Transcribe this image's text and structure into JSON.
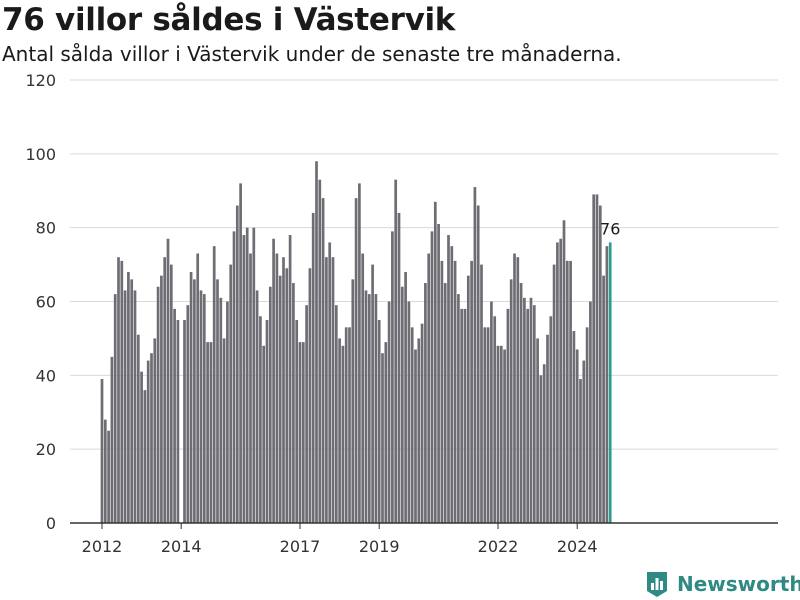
{
  "title": "76 villor såldes i Västervik",
  "subtitle": "Antal sålda villor i Västervik under de senaste tre månaderna.",
  "brand": {
    "name": "Newsworthy"
  },
  "colors": {
    "bar": "#6e6d73",
    "highlight": "#2a9d8f",
    "grid": "#d9d9d9",
    "axis": "#333333"
  },
  "chart_data": {
    "type": "bar",
    "title": "76 villor såldes i Västervik",
    "subtitle": "Antal sålda villor i Västervik under de senaste tre månaderna.",
    "ylim": [
      0,
      120
    ],
    "yticks": [
      0,
      20,
      40,
      60,
      80,
      100,
      120
    ],
    "xticks": [
      {
        "label": "2012",
        "date": "2012-01"
      },
      {
        "label": "2014",
        "date": "2014-01"
      },
      {
        "label": "2017",
        "date": "2017-01"
      },
      {
        "label": "2019",
        "date": "2019-01"
      },
      {
        "label": "2022",
        "date": "2022-01"
      },
      {
        "label": "2024",
        "date": "2024-01"
      }
    ],
    "grid": true,
    "highlight_label": "76",
    "x": [
      "2012-01",
      "2012-02",
      "2012-03",
      "2012-04",
      "2012-05",
      "2012-06",
      "2012-07",
      "2012-08",
      "2012-09",
      "2012-10",
      "2012-11",
      "2012-12",
      "2013-01",
      "2013-02",
      "2013-03",
      "2013-04",
      "2013-05",
      "2013-06",
      "2013-07",
      "2013-08",
      "2013-09",
      "2013-10",
      "2013-11",
      "2013-12",
      "2014-01",
      "2014-02",
      "2014-03",
      "2014-04",
      "2014-05",
      "2014-06",
      "2014-07",
      "2014-08",
      "2014-09",
      "2014-10",
      "2014-11",
      "2014-12",
      "2015-01",
      "2015-02",
      "2015-03",
      "2015-04",
      "2015-05",
      "2015-06",
      "2015-07",
      "2015-08",
      "2015-09",
      "2015-10",
      "2015-11",
      "2015-12",
      "2016-01",
      "2016-02",
      "2016-03",
      "2016-04",
      "2016-05",
      "2016-06",
      "2016-07",
      "2016-08",
      "2016-09",
      "2016-10",
      "2016-11",
      "2016-12",
      "2017-01",
      "2017-02",
      "2017-03",
      "2017-04",
      "2017-05",
      "2017-06",
      "2017-07",
      "2017-08",
      "2017-09",
      "2017-10",
      "2017-11",
      "2017-12",
      "2018-01",
      "2018-02",
      "2018-03",
      "2018-04",
      "2018-05",
      "2018-06",
      "2018-07",
      "2018-08",
      "2018-09",
      "2018-10",
      "2018-11",
      "2018-12",
      "2019-01",
      "2019-02",
      "2019-03",
      "2019-04",
      "2019-05",
      "2019-06",
      "2019-07",
      "2019-08",
      "2019-09",
      "2019-10",
      "2019-11",
      "2019-12",
      "2020-01",
      "2020-02",
      "2020-03",
      "2020-04",
      "2020-05",
      "2020-06",
      "2020-07",
      "2020-08",
      "2020-09",
      "2020-10",
      "2020-11",
      "2020-12",
      "2021-01",
      "2021-02",
      "2021-03",
      "2021-04",
      "2021-05",
      "2021-06",
      "2021-07",
      "2021-08",
      "2021-09",
      "2021-10",
      "2021-11",
      "2021-12",
      "2022-01",
      "2022-02",
      "2022-03",
      "2022-04",
      "2022-05",
      "2022-06",
      "2022-07",
      "2022-08",
      "2022-09",
      "2022-10",
      "2022-11",
      "2022-12",
      "2023-01",
      "2023-02",
      "2023-03",
      "2023-04",
      "2023-05",
      "2023-06",
      "2023-07",
      "2023-08",
      "2023-09",
      "2023-10",
      "2023-11",
      "2023-12",
      "2024-01",
      "2024-02",
      "2024-03",
      "2024-04",
      "2024-05",
      "2024-06",
      "2024-07",
      "2024-08",
      "2024-09",
      "2024-10",
      "2024-11"
    ],
    "values": [
      39,
      28,
      25,
      45,
      62,
      72,
      71,
      63,
      68,
      66,
      63,
      51,
      41,
      36,
      44,
      46,
      50,
      64,
      67,
      72,
      77,
      70,
      58,
      55,
      0,
      55,
      59,
      68,
      66,
      73,
      63,
      62,
      49,
      49,
      75,
      66,
      61,
      50,
      60,
      70,
      79,
      86,
      92,
      78,
      80,
      73,
      80,
      63,
      56,
      48,
      55,
      64,
      77,
      73,
      67,
      72,
      69,
      78,
      65,
      55,
      49,
      49,
      59,
      69,
      84,
      98,
      93,
      88,
      72,
      76,
      72,
      59,
      50,
      48,
      53,
      53,
      66,
      88,
      92,
      73,
      63,
      62,
      70,
      62,
      55,
      46,
      49,
      60,
      79,
      93,
      84,
      64,
      68,
      60,
      53,
      47,
      50,
      54,
      65,
      73,
      79,
      87,
      81,
      71,
      65,
      78,
      75,
      71,
      62,
      58,
      58,
      67,
      71,
      91,
      86,
      70,
      53,
      53,
      60,
      56,
      48,
      48,
      47,
      58,
      66,
      73,
      72,
      65,
      61,
      58,
      61,
      59,
      50,
      40,
      43,
      51,
      56,
      70,
      76,
      77,
      82,
      71,
      71,
      52,
      47,
      39,
      44,
      53,
      60,
      89,
      89,
      86,
      67,
      75,
      76
    ]
  }
}
